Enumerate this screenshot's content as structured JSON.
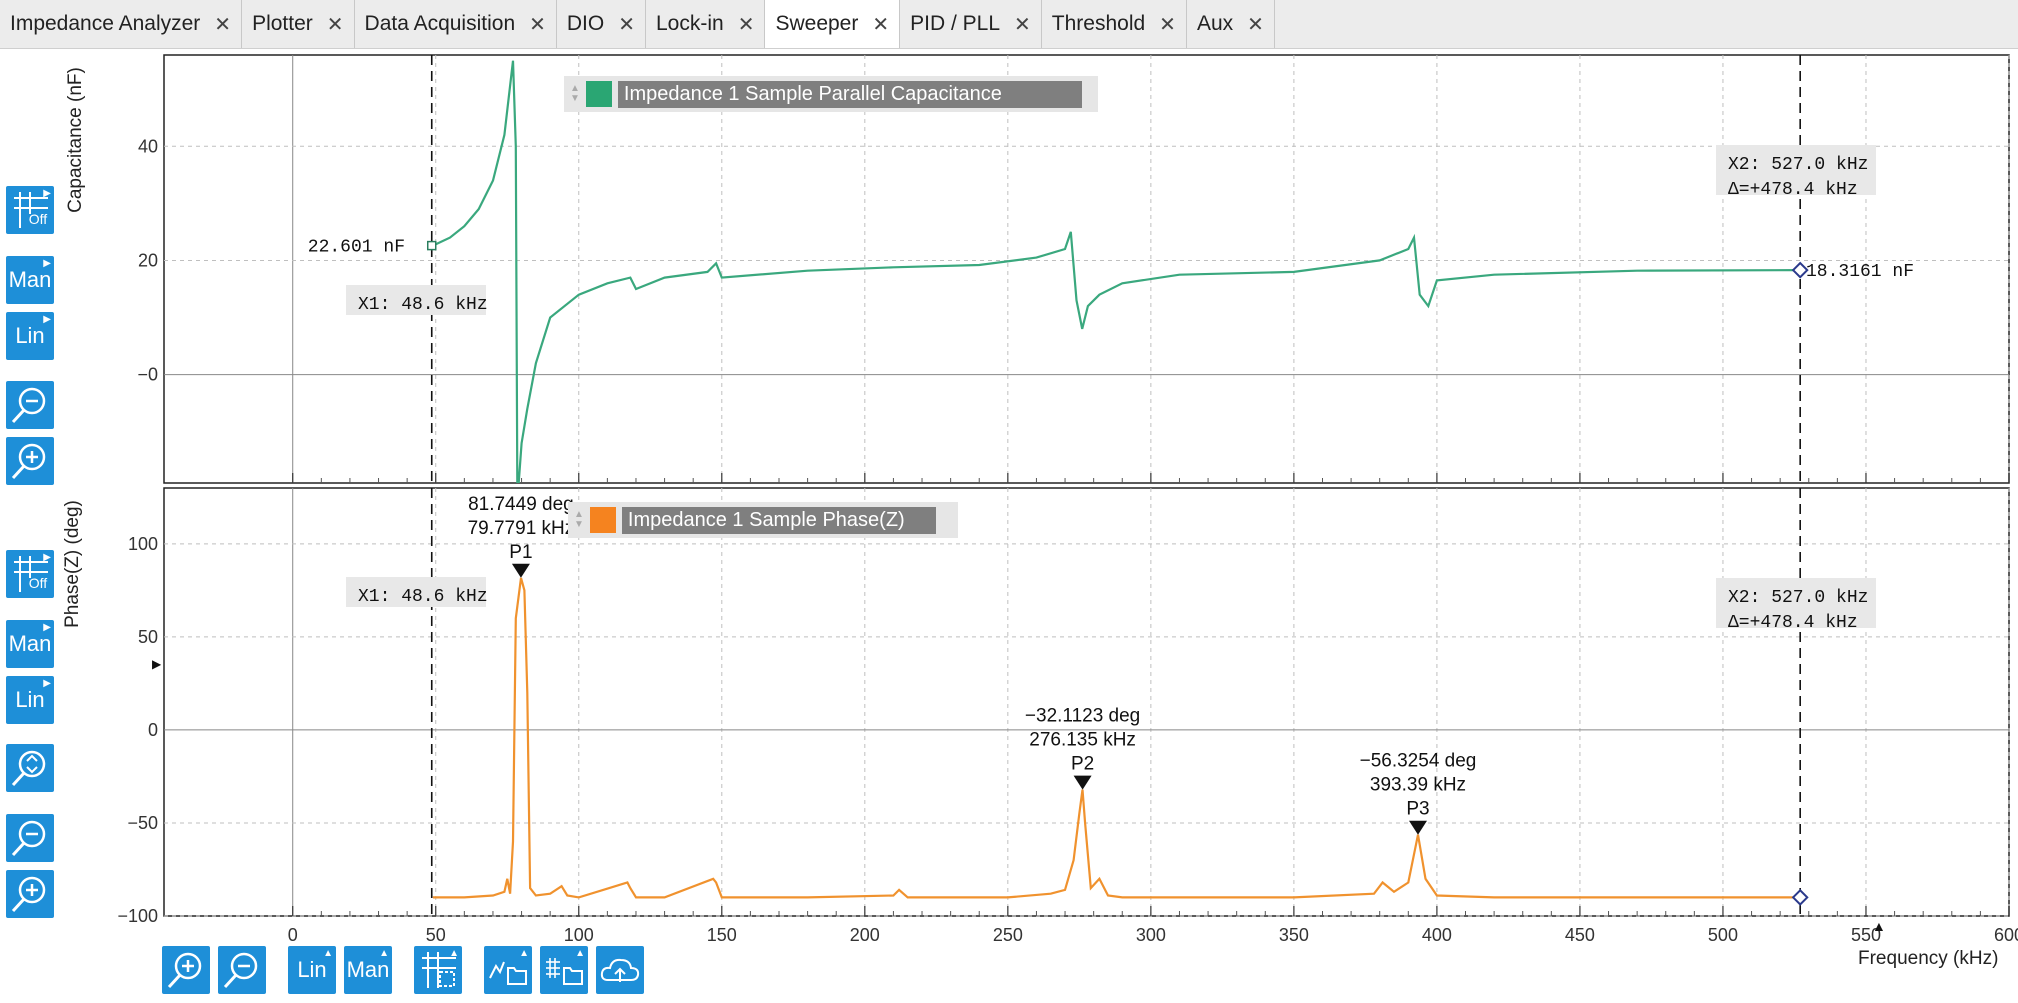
{
  "tabs": [
    {
      "label": "Impedance Analyzer"
    },
    {
      "label": "Plotter"
    },
    {
      "label": "Data Acquisition"
    },
    {
      "label": "DIO"
    },
    {
      "label": "Lock-in"
    },
    {
      "label": "Sweeper",
      "active": true
    },
    {
      "label": "PID / PLL"
    },
    {
      "label": "Threshold"
    },
    {
      "label": "Aux"
    }
  ],
  "toolbar_left": {
    "grid_off": "Off",
    "man": "Man",
    "lin": "Lin"
  },
  "toolbar_bottom": {
    "lin": "Lin",
    "man": "Man"
  },
  "top_plot": {
    "ylabel": "Capacitance (nF)",
    "legend": "Impedance 1 Sample Parallel Capacitance",
    "cursor_x1": "X1: 48.6 kHz",
    "cursor_x2": "X2: 527.0 kHz",
    "cursor_delta": "Δ=+478.4 kHz",
    "value_left": "22.601 nF",
    "value_right": "18.3161 nF",
    "color": "#3aa87e"
  },
  "bottom_plot": {
    "ylabel": "Phase(Z) (deg)",
    "legend": "Impedance 1 Sample Phase(Z)",
    "cursor_x1": "X1: 48.6 kHz",
    "cursor_x2": "X2: 527.0 kHz",
    "cursor_delta": "Δ=+478.4 kHz",
    "color": "#f0922e",
    "peaks": [
      {
        "name": "P1",
        "deg": "81.7449 deg",
        "freq": "79.7791 kHz"
      },
      {
        "name": "P2",
        "deg": "−32.1123 deg",
        "freq": "276.135 kHz"
      },
      {
        "name": "P3",
        "deg": "−56.3254 deg",
        "freq": "393.39 kHz"
      }
    ]
  },
  "xaxis_label": "Frequency (kHz)",
  "chart_data": [
    {
      "type": "line",
      "title": "",
      "ylabel": "Capacitance (nF)",
      "xlabel": "",
      "xlim": [
        -45,
        600
      ],
      "ylim": [
        -19,
        56
      ],
      "x_ticks": [
        "0",
        "50",
        "100",
        "150",
        "200",
        "250",
        "300",
        "350",
        "400",
        "450",
        "500",
        "550"
      ],
      "y_ticks": [
        "40",
        "20",
        "−0"
      ],
      "series": [
        {
          "name": "Impedance 1 Sample Parallel Capacitance",
          "x": [
            49,
            55,
            60,
            65,
            70,
            74,
            77,
            78,
            78.5,
            79,
            80,
            82,
            85,
            90,
            100,
            110,
            118,
            120,
            130,
            145,
            148,
            150,
            180,
            210,
            240,
            260,
            270,
            272,
            274,
            276,
            278,
            282,
            290,
            310,
            350,
            380,
            390,
            392,
            394,
            397,
            400,
            420,
            470,
            527
          ],
          "y": [
            22.6,
            24,
            26,
            29,
            34,
            42,
            55,
            40,
            -19,
            -19,
            -12,
            -6,
            2,
            10,
            14,
            16,
            17,
            15,
            17,
            18,
            19.5,
            17,
            18.2,
            18.8,
            19.2,
            20.5,
            22,
            25,
            13,
            8,
            12,
            14,
            16,
            17.5,
            18,
            20,
            22,
            24,
            14,
            12,
            16.5,
            17.5,
            18.2,
            18.3
          ]
        }
      ]
    },
    {
      "type": "line",
      "title": "",
      "ylabel": "Phase(Z) (deg)",
      "xlabel": "Frequency (kHz)",
      "xlim": [
        -45,
        600
      ],
      "ylim": [
        -100,
        130
      ],
      "x_ticks": [
        "0",
        "50",
        "100",
        "150",
        "200",
        "250",
        "300",
        "350",
        "400",
        "450",
        "500",
        "550",
        "600"
      ],
      "y_ticks": [
        "100",
        "50",
        "0",
        "−50",
        "−100"
      ],
      "series": [
        {
          "name": "Impedance 1 Sample Phase(Z)",
          "x": [
            49,
            60,
            70,
            74,
            75,
            76,
            77,
            78,
            79.8,
            81,
            82,
            83,
            85,
            90,
            94,
            96,
            100,
            117,
            118,
            120,
            130,
            147,
            148,
            150,
            180,
            210,
            212,
            215,
            250,
            265,
            270,
            273,
            275,
            276.1,
            277,
            279,
            282,
            285,
            290,
            310,
            350,
            378,
            381,
            385,
            390,
            393.4,
            396,
            400,
            420,
            470,
            527
          ],
          "y": [
            -90,
            -90,
            -89,
            -87,
            -80,
            -88,
            -60,
            60,
            81.7,
            75,
            20,
            -85,
            -89,
            -88,
            -84,
            -89,
            -90,
            -82,
            -85,
            -90,
            -90,
            -80,
            -82,
            -90,
            -90,
            -89,
            -86,
            -90,
            -90,
            -88,
            -86,
            -70,
            -45,
            -32.1,
            -50,
            -85,
            -80,
            -89,
            -90,
            -90,
            -90,
            -88,
            -82,
            -87,
            -82,
            -56.3,
            -80,
            -89,
            -90,
            -90,
            -90
          ]
        }
      ]
    }
  ]
}
